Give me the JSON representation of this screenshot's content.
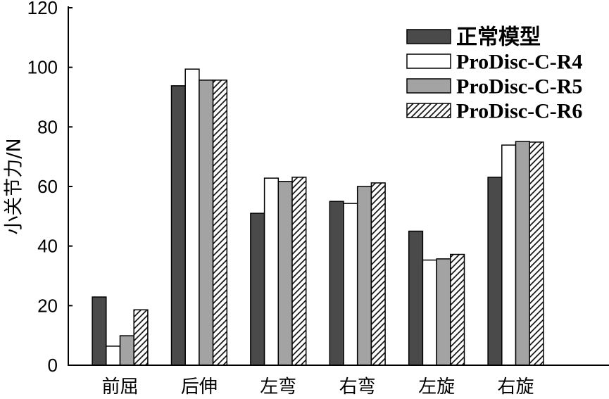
{
  "chart_data": {
    "type": "bar",
    "title": "",
    "xlabel": "",
    "ylabel": "小关节力/N",
    "categories": [
      "前屈",
      "后伸",
      "左弯",
      "右弯",
      "左旋",
      "右旋"
    ],
    "ylim": [
      0,
      120
    ],
    "yticks": [
      0,
      20,
      40,
      60,
      80,
      100,
      120
    ],
    "grid": false,
    "legend": "top-right",
    "series": [
      {
        "name": "正常模型",
        "color": "#4a4a4a",
        "hatched": false,
        "values": [
          22.9,
          93.8,
          51.0,
          55.0,
          45.0,
          63.1
        ]
      },
      {
        "name": "ProDisc-C-R4",
        "color": "#ffffff",
        "hatched": false,
        "values": [
          6.4,
          99.4,
          62.8,
          54.3,
          35.3,
          73.9
        ]
      },
      {
        "name": "ProDisc-C-R5",
        "color": "#a3a3a3",
        "hatched": false,
        "values": [
          9.9,
          95.7,
          61.7,
          60.0,
          35.7,
          75.1
        ]
      },
      {
        "name": "ProDisc-C-R6",
        "color": "#ffffff",
        "hatched": true,
        "values": [
          18.6,
          95.7,
          63.1,
          61.2,
          37.2,
          74.9
        ]
      }
    ]
  }
}
